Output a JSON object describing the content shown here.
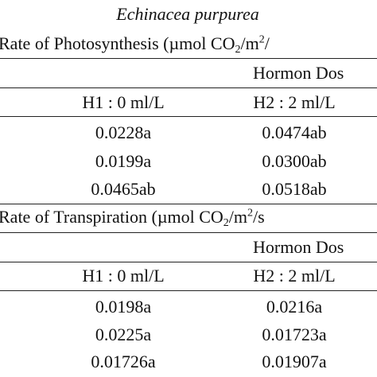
{
  "title": "Echinacea purpurea",
  "sections": [
    {
      "heading": [
        "Rate of Photosynthesis (µmol CO",
        "2",
        "/m",
        "2",
        "/"
      ],
      "group_header": "Hormon Dos",
      "columns": [
        "H1 : 0 ml/L",
        "H2 : 2 ml/L"
      ],
      "rows": [
        [
          "0.0228a",
          "0.0474ab"
        ],
        [
          "0.0199a",
          "0.0300ab"
        ],
        [
          "0.0465ab",
          "0.0518ab"
        ]
      ]
    },
    {
      "heading": [
        "Rate of Transpiration (µmol CO",
        "2",
        "/m",
        "2",
        "/s"
      ],
      "group_header": "Hormon Dos",
      "columns": [
        "H1 : 0 ml/L",
        "H2 : 2 ml/L"
      ],
      "rows": [
        [
          "0.0198a",
          "0.0216a"
        ],
        [
          "0.0225a",
          "0.01723a"
        ],
        [
          "0.01726a",
          "0.01907a"
        ]
      ]
    }
  ]
}
